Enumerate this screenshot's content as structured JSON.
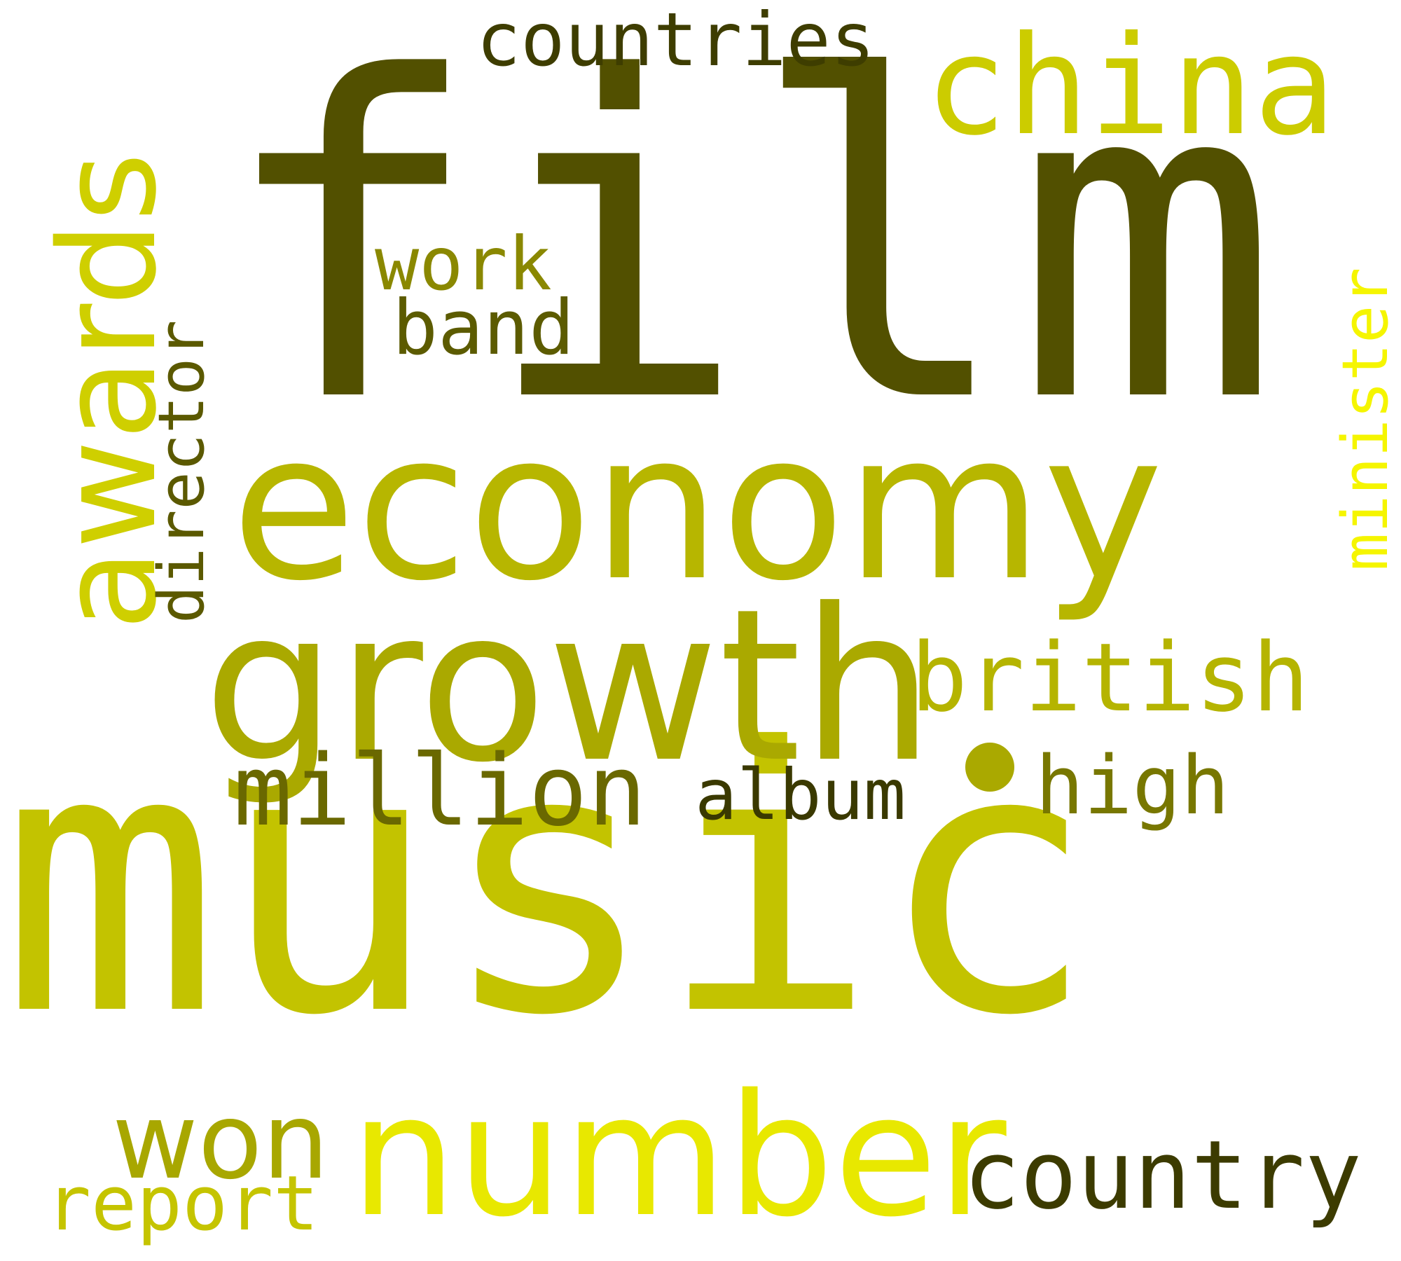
{
  "words": [
    {
      "text": "film",
      "color": "#525000"
    },
    {
      "text": "music",
      "color": "#c3c300"
    },
    {
      "text": "economy",
      "color": "#b7b600"
    },
    {
      "text": "growth",
      "color": "#aaa900"
    },
    {
      "text": "awards",
      "color": "#cfcf00"
    },
    {
      "text": "number",
      "color": "#e8e800"
    },
    {
      "text": "china",
      "color": "#cccc00"
    },
    {
      "text": "countries",
      "color": "#3e3d00"
    },
    {
      "text": "british",
      "color": "#b5b400"
    },
    {
      "text": "minister",
      "color": "#f5f500"
    },
    {
      "text": "director",
      "color": "#5b5900"
    },
    {
      "text": "work",
      "color": "#8a8800"
    },
    {
      "text": "band",
      "color": "#5c5b00"
    },
    {
      "text": "million",
      "color": "#6a6800"
    },
    {
      "text": "album",
      "color": "#3a3900"
    },
    {
      "text": "high",
      "color": "#787700"
    },
    {
      "text": "country",
      "color": "#3c3b00"
    },
    {
      "text": "won",
      "color": "#a8a700"
    },
    {
      "text": "report",
      "color": "#c5c400"
    }
  ]
}
